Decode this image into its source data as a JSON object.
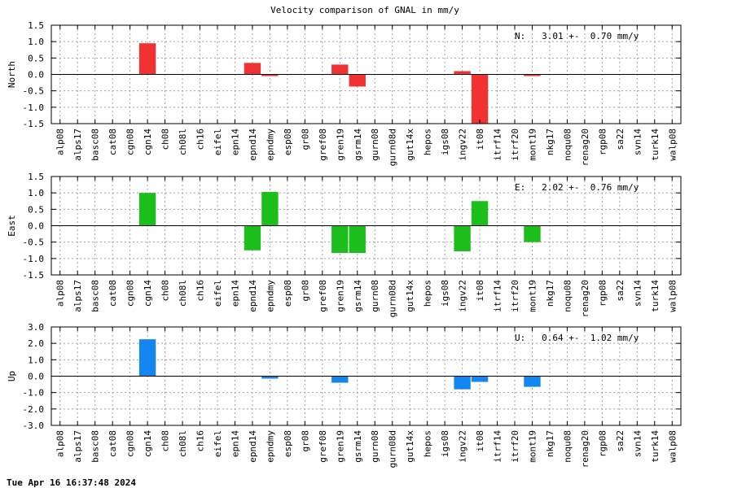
{
  "chart_data": {
    "type": "bar",
    "title": "Velocity comparison of GNAL in mm/y",
    "footer": "Tue Apr 16 16:37:48 2024",
    "categories": [
      "alp08",
      "alps17",
      "basc08",
      "cat08",
      "cgn08",
      "cgn14",
      "ch08",
      "ch08l",
      "ch16",
      "eifel",
      "epn14",
      "epnd14",
      "epndmy",
      "esp08",
      "gr08",
      "gref08",
      "gren19",
      "gsrm14",
      "gurn08",
      "gurn08d",
      "gut14x",
      "hepos",
      "igs08",
      "ingv22",
      "it08",
      "itrf14",
      "itrf20",
      "mont19",
      "nkg17",
      "noqu08",
      "renag20",
      "rgp08",
      "sa22",
      "svn14",
      "turk14",
      "walp08"
    ],
    "panels": [
      {
        "ylabel": "North",
        "color": "#f03232",
        "ylim": [
          -1.5,
          1.5
        ],
        "yticks": [
          -1.5,
          -1.0,
          -0.5,
          0.0,
          0.5,
          1.0,
          1.5
        ],
        "grid": true,
        "annotation": "N:   3.01 +-  0.70 mm/y",
        "values": [
          null,
          null,
          null,
          null,
          null,
          0.95,
          null,
          null,
          null,
          null,
          null,
          0.35,
          -0.05,
          null,
          null,
          null,
          0.3,
          -0.37,
          null,
          null,
          null,
          null,
          null,
          0.1,
          -1.5,
          null,
          null,
          -0.05,
          null,
          null,
          null,
          null,
          null,
          null,
          null,
          null
        ]
      },
      {
        "ylabel": "East",
        "color": "#1cbe1c",
        "ylim": [
          -1.5,
          1.5
        ],
        "yticks": [
          -1.5,
          -1.0,
          -0.5,
          0.0,
          0.5,
          1.0,
          1.5
        ],
        "grid": true,
        "annotation": "E:   2.02 +-  0.76 mm/y",
        "values": [
          null,
          null,
          null,
          null,
          null,
          1.0,
          null,
          null,
          null,
          null,
          null,
          -0.75,
          1.03,
          null,
          null,
          null,
          -0.83,
          -0.83,
          null,
          null,
          null,
          null,
          null,
          -0.78,
          0.75,
          null,
          null,
          -0.5,
          null,
          null,
          null,
          null,
          null,
          null,
          null,
          null
        ]
      },
      {
        "ylabel": "Up",
        "color": "#1486f0",
        "ylim": [
          -3.0,
          3.0
        ],
        "yticks": [
          -3.0,
          -2.0,
          -1.0,
          0.0,
          1.0,
          2.0,
          3.0
        ],
        "grid": true,
        "annotation": "U:   0.64 +-  1.02 mm/y",
        "values": [
          null,
          null,
          null,
          null,
          null,
          2.25,
          null,
          null,
          null,
          null,
          null,
          null,
          -0.15,
          null,
          null,
          null,
          -0.4,
          null,
          null,
          null,
          null,
          null,
          null,
          -0.8,
          -0.35,
          null,
          null,
          -0.65,
          null,
          null,
          null,
          null,
          null,
          null,
          null,
          null
        ]
      }
    ]
  }
}
